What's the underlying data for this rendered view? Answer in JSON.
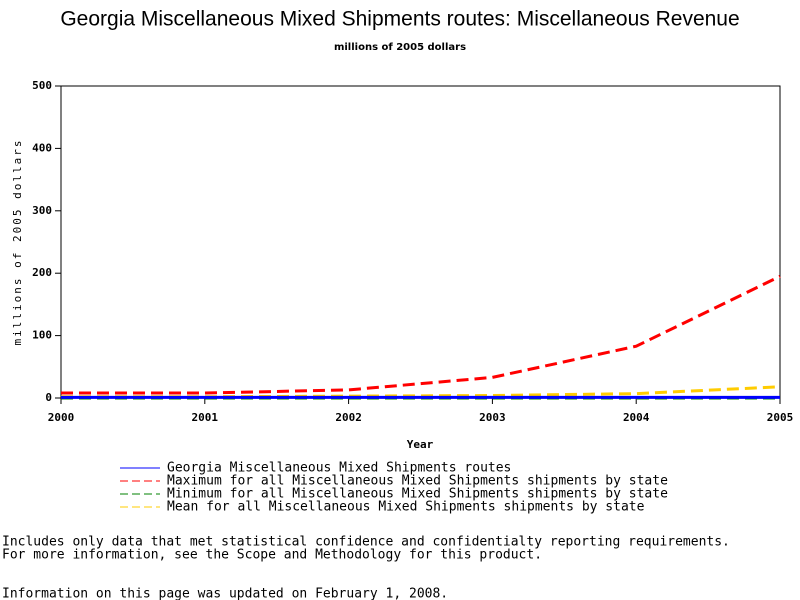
{
  "chart_data": {
    "type": "line",
    "title": "Georgia Miscellaneous Mixed Shipments routes: Miscellaneous Revenue",
    "subtitle": "millions of 2005 dollars",
    "x_label": "Year",
    "y_label": "millions of 2005 dollars",
    "x": [
      2000,
      2001,
      2002,
      2003,
      2004,
      2005
    ],
    "xlim": [
      2000,
      2005
    ],
    "xticks": [
      2000,
      2001,
      2002,
      2003,
      2004,
      2005
    ],
    "ylim": [
      0,
      500
    ],
    "yticks": [
      0,
      100,
      200,
      300,
      400,
      500
    ],
    "series": [
      {
        "name": "Georgia Miscellaneous Mixed Shipments routes",
        "color": "#0000ff",
        "dashed": false,
        "values": [
          1,
          1,
          1,
          1,
          1,
          1
        ]
      },
      {
        "name": "Maximum for all Miscellaneous Mixed Shipments shipments by state",
        "color": "#ff0000",
        "dashed": true,
        "values": [
          8,
          8,
          13,
          33,
          83,
          195
        ]
      },
      {
        "name": "Minimum for all Miscellaneous Mixed Shipments shipments by state",
        "color": "#008000",
        "dashed": true,
        "values": [
          0,
          0,
          0,
          0,
          0,
          0
        ]
      },
      {
        "name": "Mean for all Miscellaneous Mixed Shipments shipments by state",
        "color": "#ffcc00",
        "dashed": true,
        "values": [
          2,
          2,
          3,
          4,
          7,
          18
        ]
      }
    ],
    "footnotes": [
      "Includes only data that met statistical confidence and confidentialty reporting requirements.",
      "For more information, see the Scope and Methodology for this product.",
      "Information on this page was updated on February 1, 2008."
    ]
  }
}
